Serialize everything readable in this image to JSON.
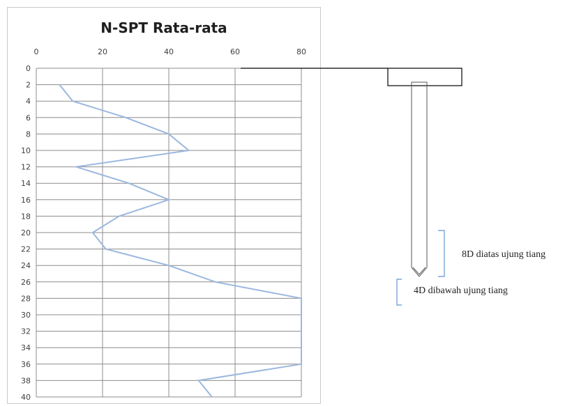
{
  "chart_data": {
    "type": "line",
    "title": "N-SPT Rata-rata",
    "x_axis": {
      "position": "top",
      "range": [
        0,
        80
      ],
      "ticks": [
        0,
        20,
        40,
        60,
        80
      ]
    },
    "y_axis": {
      "inverted": true,
      "range": [
        0,
        40
      ],
      "ticks": [
        0,
        2,
        4,
        6,
        8,
        10,
        12,
        14,
        16,
        18,
        20,
        22,
        24,
        26,
        28,
        30,
        32,
        34,
        36,
        38,
        40
      ]
    },
    "grid": true,
    "legend": "none",
    "series": [
      {
        "color": "#9bb7df",
        "points": [
          {
            "depth": 2,
            "n": 7
          },
          {
            "depth": 4,
            "n": 11
          },
          {
            "depth": 6,
            "n": 27
          },
          {
            "depth": 8,
            "n": 40
          },
          {
            "depth": 10,
            "n": 46
          },
          {
            "depth": 12,
            "n": 12
          },
          {
            "depth": 14,
            "n": 28
          },
          {
            "depth": 16,
            "n": 40
          },
          {
            "depth": 18,
            "n": 25
          },
          {
            "depth": 20,
            "n": 17
          },
          {
            "depth": 22,
            "n": 21
          },
          {
            "depth": 24,
            "n": 40
          },
          {
            "depth": 26,
            "n": 54
          },
          {
            "depth": 28,
            "n": 80
          },
          {
            "depth": 30,
            "n": 80
          },
          {
            "depth": 32,
            "n": 80
          },
          {
            "depth": 34,
            "n": 80
          },
          {
            "depth": 36,
            "n": 80
          },
          {
            "depth": 38,
            "n": 49
          },
          {
            "depth": 40,
            "n": 53
          }
        ]
      }
    ]
  },
  "annotations": {
    "above_tip": "8D diatas ujung tiang",
    "below_tip": "4D dibawah ujung tiang"
  }
}
